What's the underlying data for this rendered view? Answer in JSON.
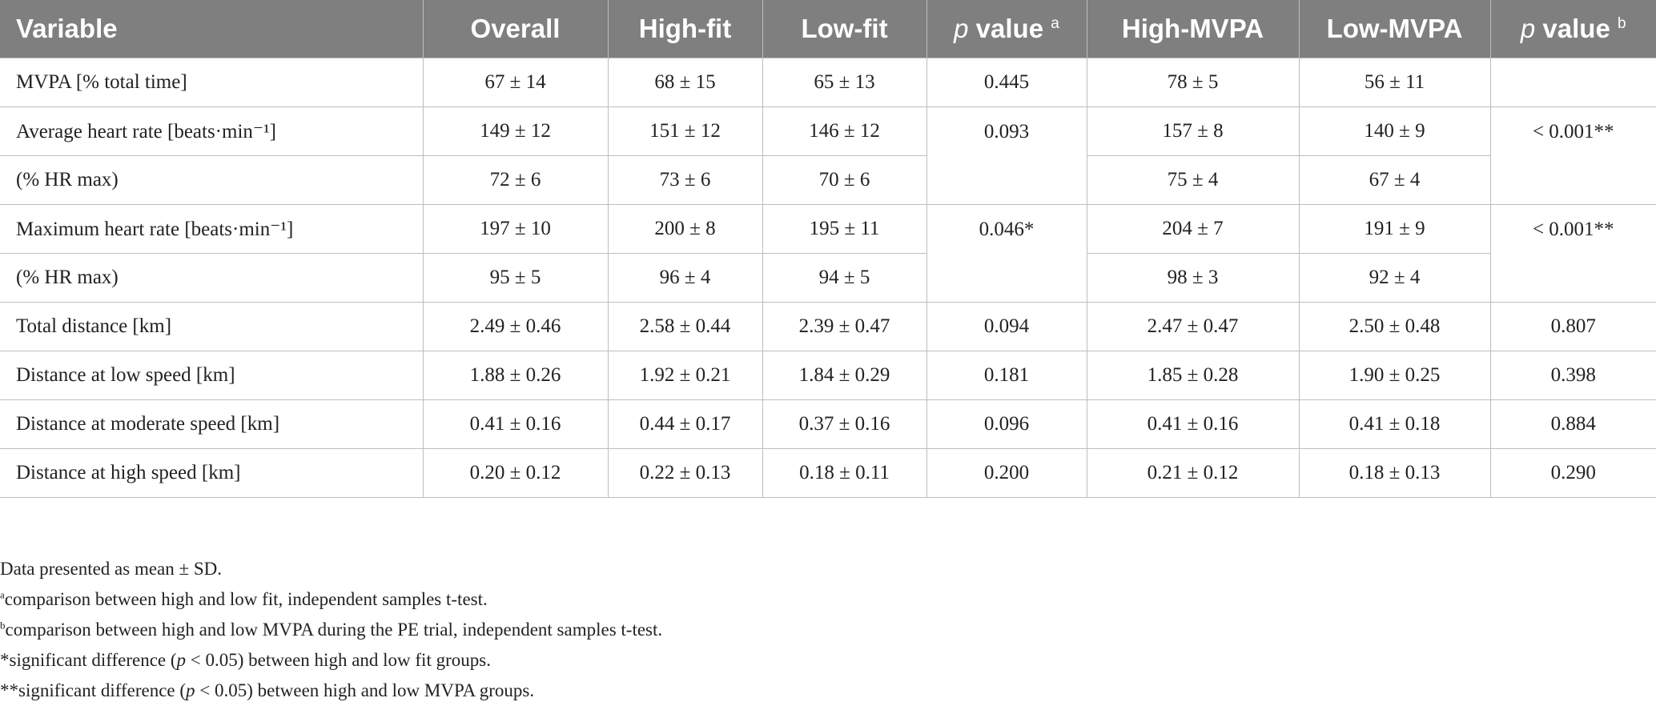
{
  "table": {
    "headers": {
      "variable": "Variable",
      "overall": "Overall",
      "high_fit": "High-fit",
      "low_fit": "Low-fit",
      "p_a_italic": "p",
      "p_a_text": " value",
      "p_a_sup": "a",
      "high_mvpa": "High-MVPA",
      "low_mvpa": "Low-MVPA",
      "p_b_italic": "p",
      "p_b_text": " value",
      "p_b_sup": "b"
    },
    "rows": {
      "mvpa": {
        "label": "MVPA [% total time]",
        "overall": "67 ± 14",
        "high_fit": "68 ± 15",
        "low_fit": "65 ± 13",
        "p_a": "0.445",
        "high_mvpa": "78 ± 5",
        "low_mvpa": "56 ± 11",
        "p_b": ""
      },
      "avg_hr": {
        "label": "Average heart rate [beats·min⁻¹]",
        "overall": "149 ± 12",
        "high_fit": "151 ± 12",
        "low_fit": "146 ± 12",
        "p_a": "0.093",
        "high_mvpa": "157 ± 8",
        "low_mvpa": "140 ± 9",
        "p_b": "< 0.001**"
      },
      "avg_hr_pct": {
        "label": "(% HR max)",
        "overall": "72 ± 6",
        "high_fit": "73 ± 6",
        "low_fit": "70 ± 6",
        "high_mvpa": "75 ± 4",
        "low_mvpa": "67 ± 4"
      },
      "max_hr": {
        "label": "Maximum heart rate [beats·min⁻¹]",
        "overall": "197 ± 10",
        "high_fit": "200 ± 8",
        "low_fit": "195 ± 11",
        "p_a": "0.046*",
        "high_mvpa": "204 ± 7",
        "low_mvpa": "191 ± 9",
        "p_b": "< 0.001**"
      },
      "max_hr_pct": {
        "label": "(% HR max)",
        "overall": "95 ± 5",
        "high_fit": "96 ± 4",
        "low_fit": "94 ± 5",
        "high_mvpa": "98 ± 3",
        "low_mvpa": "92 ± 4"
      },
      "total_dist": {
        "label": "Total distance [km]",
        "overall": "2.49 ± 0.46",
        "high_fit": "2.58 ± 0.44",
        "low_fit": "2.39 ± 0.47",
        "p_a": "0.094",
        "high_mvpa": "2.47 ± 0.47",
        "low_mvpa": "2.50 ± 0.48",
        "p_b": "0.807"
      },
      "dist_low": {
        "label": "Distance at low speed [km]",
        "overall": "1.88 ± 0.26",
        "high_fit": "1.92 ± 0.21",
        "low_fit": "1.84 ± 0.29",
        "p_a": "0.181",
        "high_mvpa": "1.85 ± 0.28",
        "low_mvpa": "1.90 ± 0.25",
        "p_b": "0.398"
      },
      "dist_mod": {
        "label": "Distance at moderate speed [km]",
        "overall": "0.41 ± 0.16",
        "high_fit": "0.44 ± 0.17",
        "low_fit": "0.37 ± 0.16",
        "p_a": "0.096",
        "high_mvpa": "0.41 ± 0.16",
        "low_mvpa": "0.41 ± 0.18",
        "p_b": "0.884"
      },
      "dist_high": {
        "label": "Distance at high speed [km]",
        "overall": "0.20 ± 0.12",
        "high_fit": "0.22 ± 0.13",
        "low_fit": "0.18 ± 0.11",
        "p_a": "0.200",
        "high_mvpa": "0.21 ± 0.12",
        "low_mvpa": "0.18 ± 0.13",
        "p_b": "0.290"
      }
    }
  },
  "footnotes": {
    "data_note": "Data presented as mean ± SD.",
    "a_marker": "a",
    "a_text": "comparison between high and low fit, independent samples t-test.",
    "b_marker": "b",
    "b_text": "comparison between high and low MVPA during the PE trial, independent samples t-test.",
    "star1_pre": "*significant difference (",
    "star1_italic": "p",
    "star1_post": " < 0.05) between high and low fit groups.",
    "star2_pre": "**significant difference (",
    "star2_italic": "p",
    "star2_post": " < 0.05) between high and low MVPA groups."
  }
}
